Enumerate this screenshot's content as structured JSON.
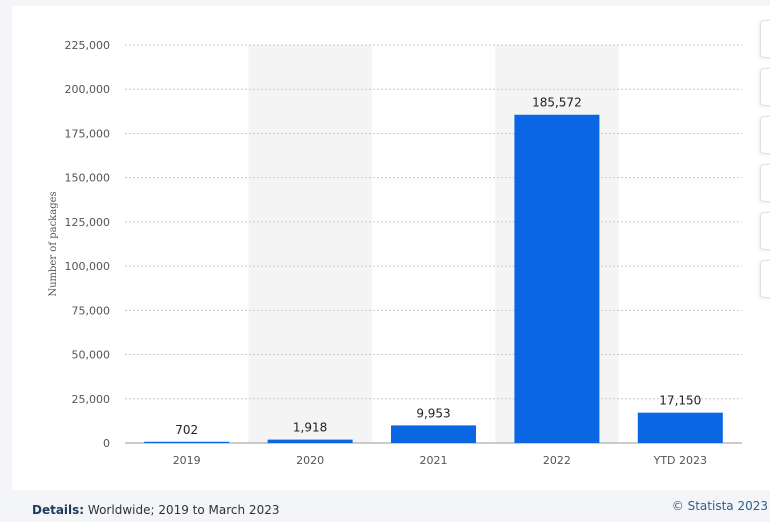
{
  "chart_data": {
    "type": "bar",
    "categories": [
      "2019",
      "2020",
      "2021",
      "2022",
      "YTD 2023"
    ],
    "values": [
      702,
      1918,
      9953,
      185572,
      17150
    ],
    "value_labels": [
      "702",
      "1,918",
      "9,953",
      "185,572",
      "17,150"
    ],
    "ylabel": "Number of packages",
    "xlabel": "",
    "ylim": [
      0,
      225000
    ],
    "yticks": [
      0,
      25000,
      50000,
      75000,
      100000,
      125000,
      150000,
      175000,
      200000,
      225000
    ],
    "ytick_labels": [
      "0",
      "25,000",
      "50,000",
      "75,000",
      "100,000",
      "125,000",
      "150,000",
      "175,000",
      "200,000",
      "225,000"
    ],
    "bar_color": "#0b66e4",
    "band_color": "#f4f4f4",
    "grid": true
  },
  "footer": {
    "details_label": "Details:",
    "details_text": " Worldwide; 2019 to March 2023",
    "credit": "© Statista 2023"
  }
}
